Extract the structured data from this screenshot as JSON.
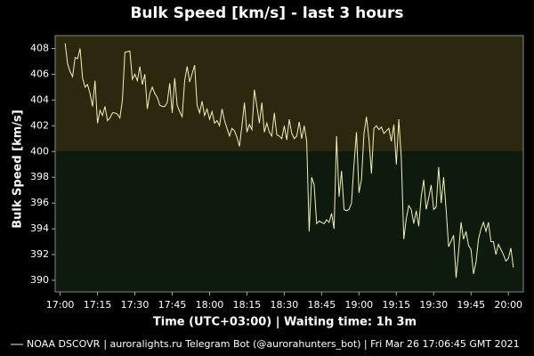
{
  "chart_data": {
    "type": "line",
    "title": "Bulk Speed [km/s] - last 3 hours",
    "y_label": "Bulk Speed [km/s]",
    "x_label": "Time (UTC+03:00) | Waiting time: 1h 3m",
    "footer": "| auroralights.ru Telegram Bot (@aurorahunters_bot) | Fri Mar 26 17:06:45 GMT 2021",
    "xlim": [
      "16:58",
      "20:06"
    ],
    "xticks": [
      "17:00",
      "17:15",
      "17:30",
      "17:45",
      "18:00",
      "18:15",
      "18:30",
      "18:45",
      "19:00",
      "19:15",
      "19:30",
      "19:45",
      "20:00"
    ],
    "ylim": [
      389.1,
      409
    ],
    "yticks": [
      390,
      392,
      394,
      396,
      398,
      400,
      402,
      404,
      406,
      408
    ],
    "bands": [
      {
        "from": 400,
        "to": 409,
        "color": "#2c2810"
      },
      {
        "from": 389.1,
        "to": 400,
        "color": "#0e1a0e"
      }
    ],
    "x": [
      "17:02",
      "17:03",
      "17:04",
      "17:05",
      "17:06",
      "17:07",
      "17:08",
      "17:09",
      "17:10",
      "17:11",
      "17:12",
      "17:13",
      "17:14",
      "17:15",
      "17:16",
      "17:17",
      "17:18",
      "17:19",
      "17:20",
      "17:21",
      "17:22",
      "17:23",
      "17:24",
      "17:25",
      "17:26",
      "17:28",
      "17:29",
      "17:30",
      "17:31",
      "17:32",
      "17:33",
      "17:34",
      "17:35",
      "17:36",
      "17:37",
      "17:38",
      "17:39",
      "17:40",
      "17:41",
      "17:42",
      "17:43",
      "17:44",
      "17:45",
      "17:46",
      "17:47",
      "17:48",
      "17:49",
      "17:50",
      "17:51",
      "17:52",
      "17:54",
      "17:55",
      "17:56",
      "17:57",
      "17:58",
      "17:59",
      "18:00",
      "18:01",
      "18:02",
      "18:03",
      "18:04",
      "18:05",
      "18:06",
      "18:07",
      "18:08",
      "18:09",
      "18:10",
      "18:11",
      "18:12",
      "18:13",
      "18:14",
      "18:15",
      "18:16",
      "18:17",
      "18:18",
      "18:20",
      "18:21",
      "18:22",
      "18:23",
      "18:24",
      "18:25",
      "18:26",
      "18:27",
      "18:28",
      "18:29",
      "18:30",
      "18:31",
      "18:32",
      "18:33",
      "18:34",
      "18:35",
      "18:36",
      "18:37",
      "18:38",
      "18:39",
      "18:40",
      "18:41",
      "18:42",
      "18:43",
      "18:44",
      "18:46",
      "18:47",
      "18:48",
      "18:49",
      "18:50",
      "18:51",
      "18:52",
      "18:53",
      "18:54",
      "18:55",
      "18:56",
      "18:57",
      "18:58",
      "18:59",
      "19:00",
      "19:01",
      "19:02",
      "19:03",
      "19:04",
      "19:05",
      "19:06",
      "19:07",
      "19:08",
      "19:09",
      "19:10",
      "19:12",
      "19:13",
      "19:14",
      "19:15",
      "19:16",
      "19:17",
      "19:18",
      "19:19",
      "19:20",
      "19:21",
      "19:22",
      "19:23",
      "19:24",
      "19:25",
      "19:26",
      "19:27",
      "19:28",
      "19:29",
      "19:30",
      "19:31",
      "19:32",
      "19:33",
      "19:34",
      "19:35",
      "19:36",
      "19:38",
      "19:39",
      "19:40",
      "19:41",
      "19:42",
      "19:43",
      "19:44",
      "19:45",
      "19:46",
      "19:47",
      "19:48",
      "19:49",
      "19:50",
      "19:51",
      "19:52",
      "19:53",
      "19:54",
      "19:55",
      "19:56",
      "19:57",
      "19:58",
      "19:59",
      "20:00",
      "20:01",
      "20:02"
    ],
    "series": [
      {
        "name": "NOAA DSCOVR",
        "color": "#f2f0b8",
        "values": [
          408.4,
          406.8,
          406.2,
          405.8,
          407.3,
          407.2,
          408.0,
          405.7,
          405.0,
          405.2,
          404.5,
          403.5,
          405.5,
          402.2,
          403.2,
          402.8,
          403.5,
          402.4,
          402.6,
          403.0,
          403.0,
          402.9,
          402.6,
          404.0,
          407.7,
          407.8,
          405.6,
          406.0,
          405.5,
          406.6,
          405.2,
          406.0,
          403.3,
          404.5,
          405.0,
          404.5,
          404.2,
          403.6,
          403.5,
          403.5,
          403.8,
          405.3,
          403.0,
          405.7,
          403.6,
          403.1,
          402.7,
          405.5,
          406.6,
          405.4,
          406.7,
          403.6,
          403.0,
          403.9,
          402.8,
          403.3,
          402.5,
          403.1,
          402.2,
          402.4,
          402.0,
          403.3,
          402.4,
          401.8,
          401.2,
          401.8,
          401.6,
          401.1,
          400.4,
          402.0,
          403.8,
          401.5,
          402.1,
          401.7,
          404.8,
          402.2,
          403.8,
          401.5,
          402.2,
          401.5,
          401.2,
          403.0,
          401.3,
          401.2,
          401.0,
          402.0,
          400.9,
          402.5,
          401.4,
          401.0,
          401.2,
          402.3,
          401.0,
          402.0,
          400.8,
          393.8,
          398.0,
          397.4,
          394.4,
          394.6,
          394.4,
          394.7,
          394.5,
          395.2,
          394.0,
          401.2,
          396.5,
          398.5,
          395.5,
          395.4,
          395.5,
          396.0,
          399.0,
          401.5,
          396.8,
          397.8,
          401.4,
          402.7,
          401.0,
          398.3,
          401.8,
          402.0,
          401.7,
          401.9,
          401.4,
          401.8,
          400.8,
          402.1,
          399.0,
          402.5,
          399.5,
          393.2,
          394.8,
          395.8,
          395.5,
          394.4,
          395.4,
          394.2,
          396.5,
          397.8,
          395.5,
          396.4,
          397.4,
          395.5,
          395.7,
          398.8,
          396.0,
          398.0,
          395.5,
          392.6,
          393.5,
          390.2,
          392.2,
          394.5,
          393.2,
          393.8,
          392.7,
          392.4,
          390.5,
          391.4,
          393.2,
          394.0,
          394.5,
          393.8,
          394.5,
          393.0,
          393.0,
          392.0,
          392.8,
          392.4,
          392.0,
          391.5,
          391.7,
          392.5,
          391.0
        ]
      }
    ]
  }
}
